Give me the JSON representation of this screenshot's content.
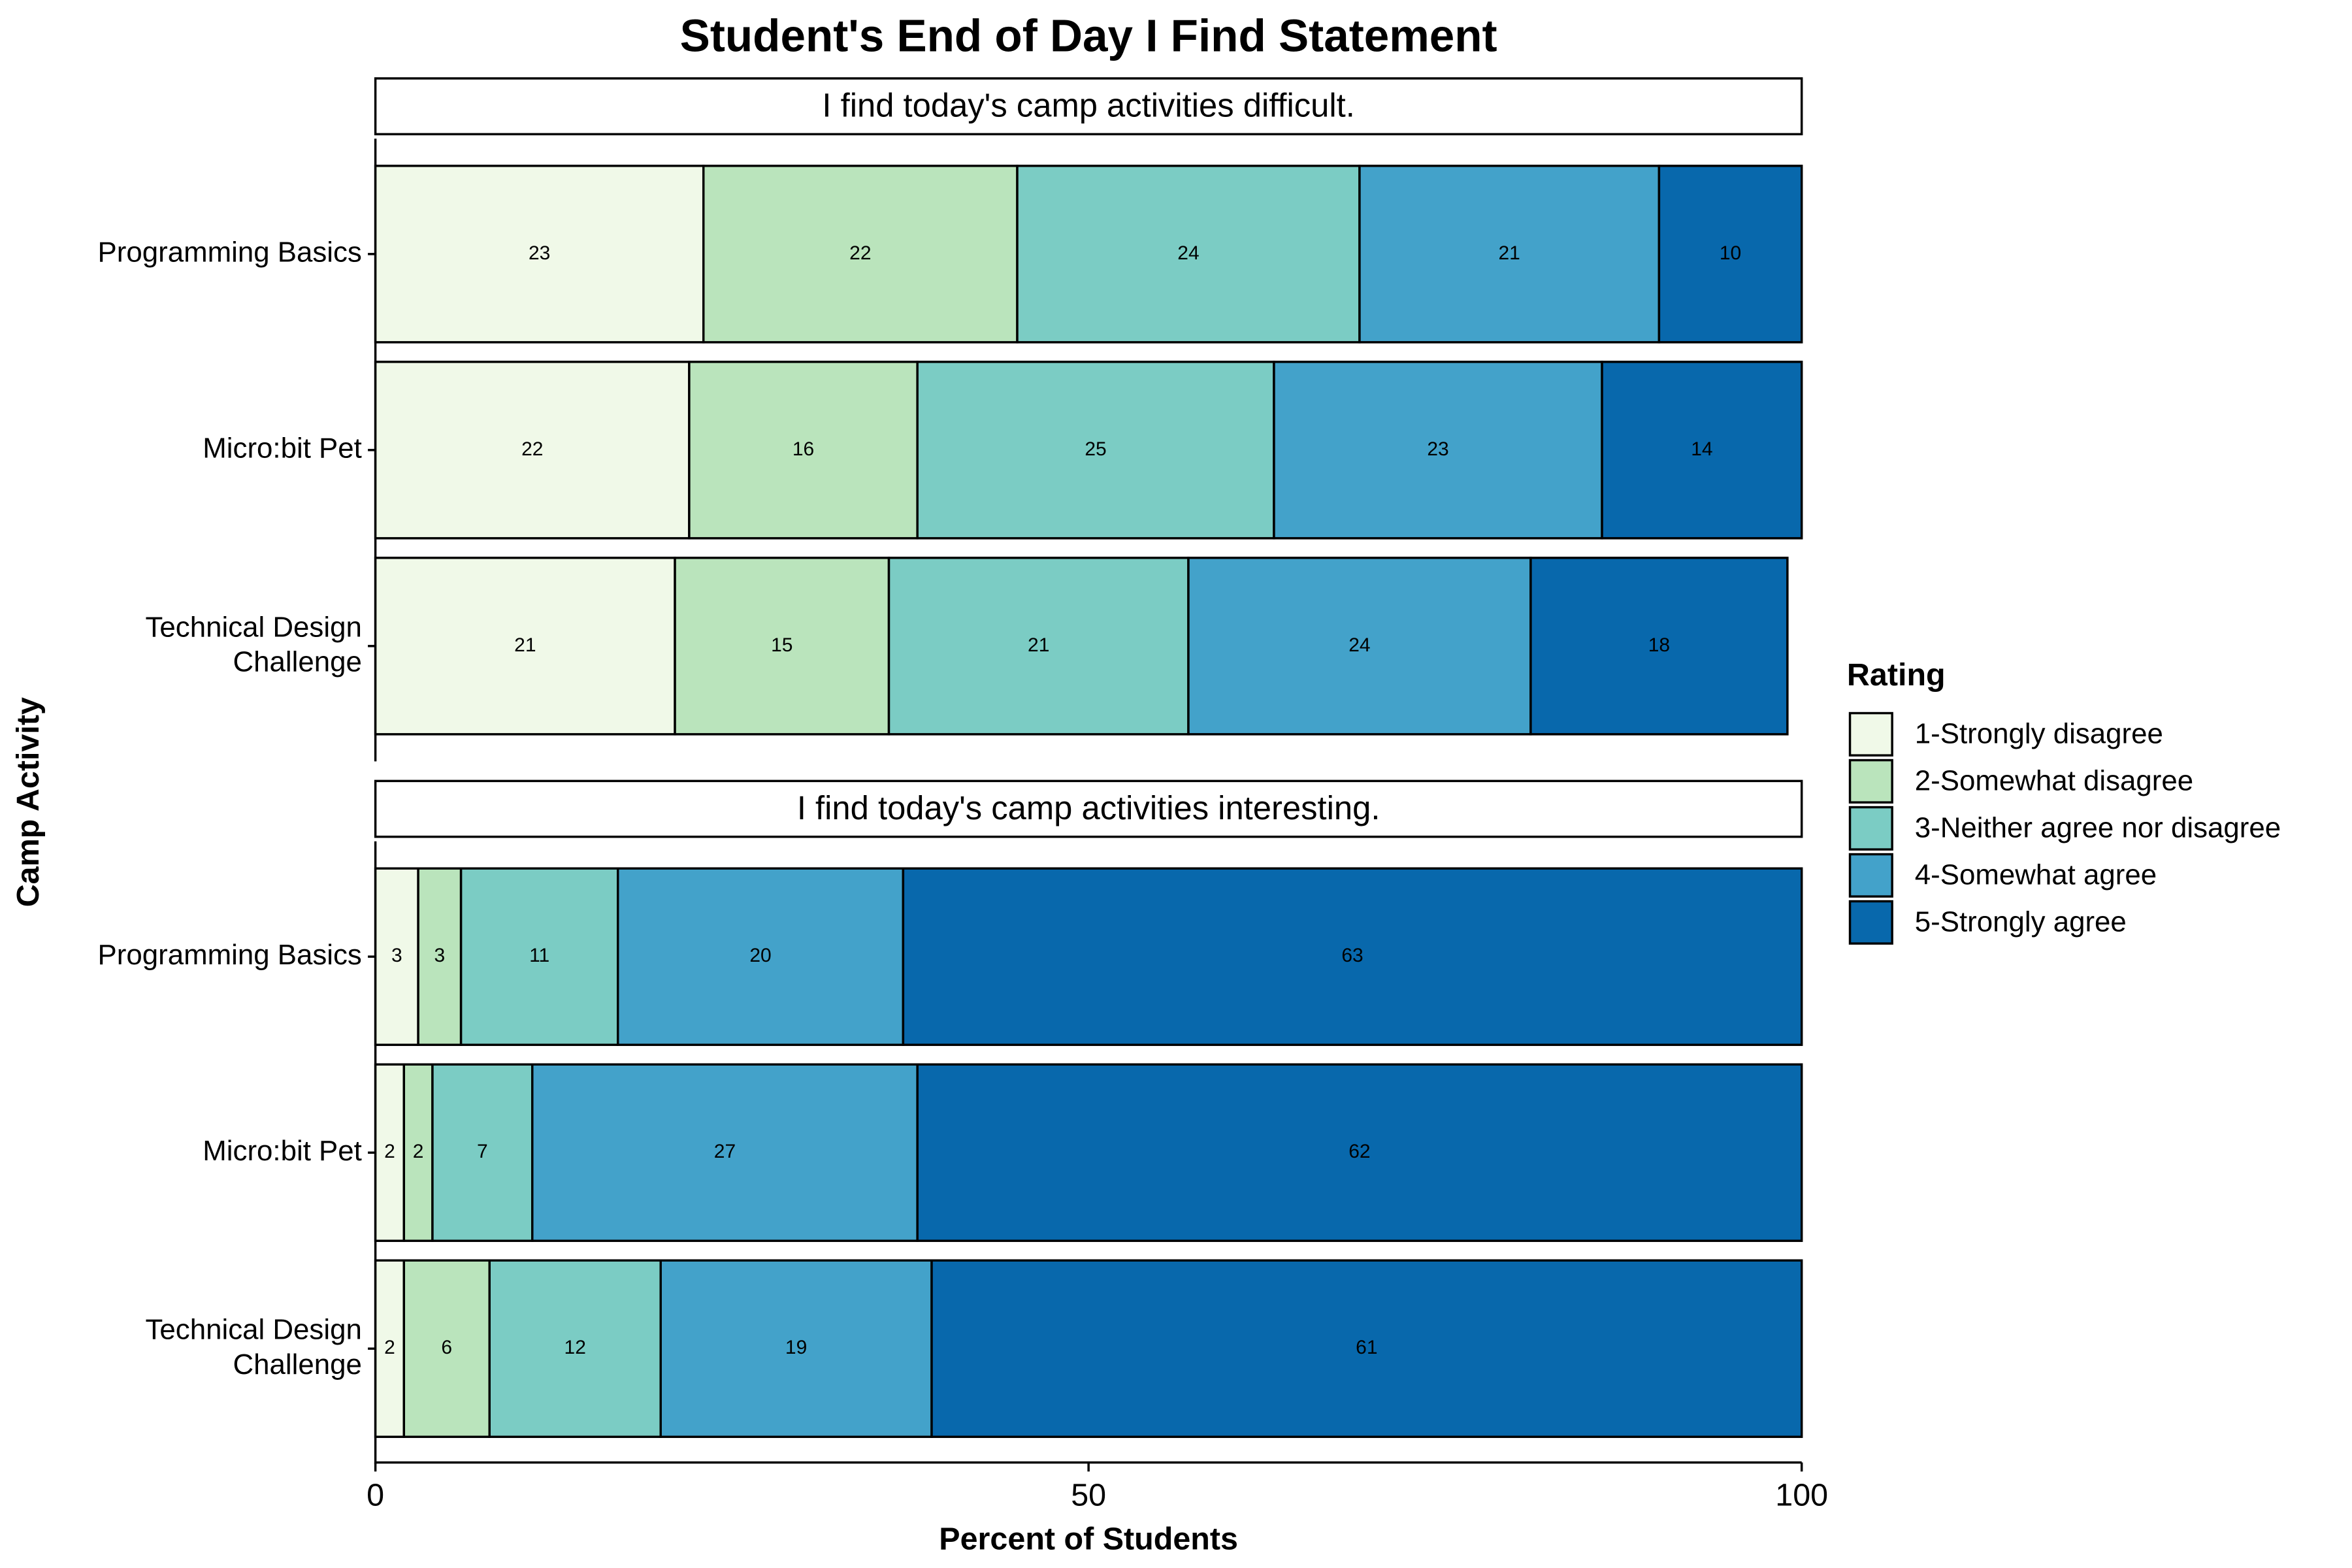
{
  "chart_data": {
    "type": "bar",
    "orientation": "horizontal",
    "stacked": true,
    "title": "Student's End of Day I Find Statement",
    "xlabel": "Percent of Students",
    "ylabel": "Camp Activity",
    "legend_title": "Rating",
    "legend_position": "right",
    "xlim": [
      0,
      100
    ],
    "xticks": [
      0,
      50,
      100
    ],
    "categories": [
      "Programming Basics",
      "Micro:bit Pet",
      "Technical Design\nChallenge"
    ],
    "panels": [
      "I find today's camp activities difficult.",
      "I find today's camp activities interesting."
    ],
    "series": [
      {
        "name": "1-Strongly disagree",
        "color": "#f0f9e8",
        "values": [
          [
            23,
            22,
            21
          ],
          [
            3,
            2,
            2
          ]
        ]
      },
      {
        "name": "2-Somewhat disagree",
        "color": "#bae4bc",
        "values": [
          [
            22,
            16,
            15
          ],
          [
            3,
            2,
            6
          ]
        ]
      },
      {
        "name": "3-Neither agree nor disagree",
        "color": "#7bccc4",
        "values": [
          [
            24,
            25,
            21
          ],
          [
            11,
            7,
            12
          ]
        ]
      },
      {
        "name": "4-Somewhat agree",
        "color": "#43a2ca",
        "values": [
          [
            21,
            23,
            24
          ],
          [
            20,
            27,
            19
          ]
        ]
      },
      {
        "name": "5-Strongly agree",
        "color": "#0868ac",
        "values": [
          [
            10,
            14,
            18
          ],
          [
            63,
            62,
            61
          ]
        ]
      }
    ]
  }
}
